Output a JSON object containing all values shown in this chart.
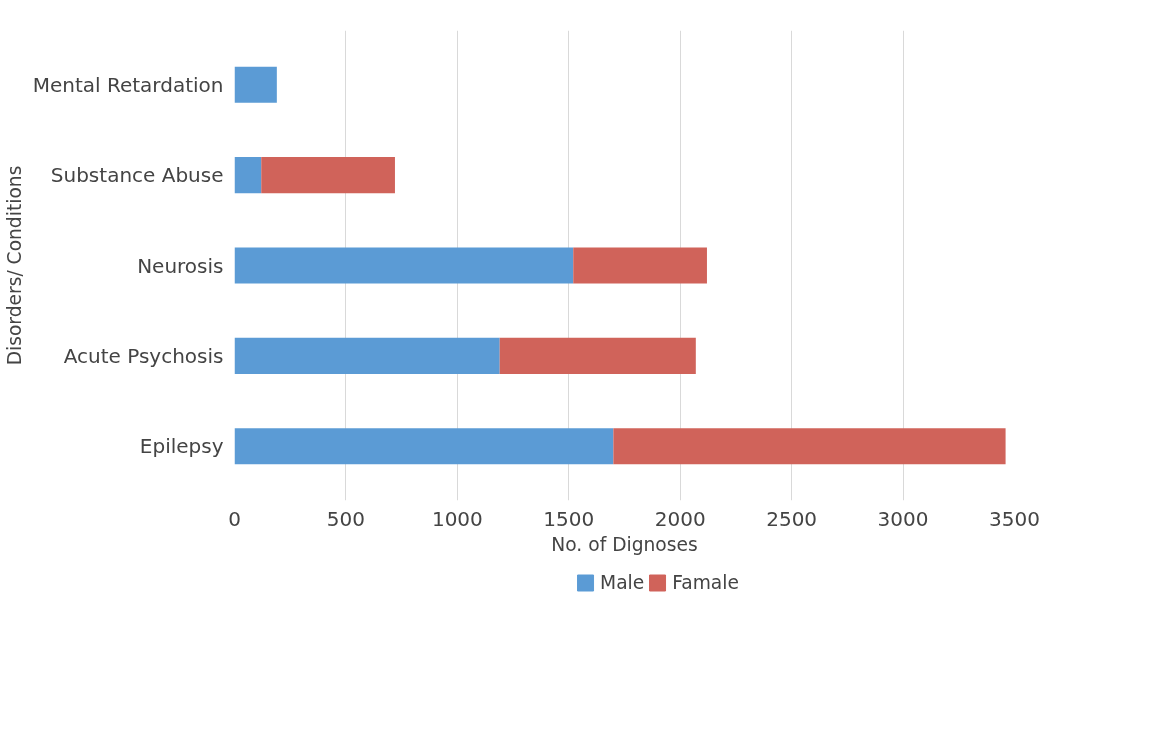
{
  "chart_data": {
    "type": "bar",
    "orientation": "horizontal",
    "stacked": true,
    "xlabel": "No. of Dignoses",
    "ylabel": "Disorders/ Conditions",
    "categories": [
      "Mental Retardation",
      "Substance Abuse",
      "Neurosis",
      "Acute Psychosis",
      "Epilepsy"
    ],
    "series": [
      {
        "name": "Male",
        "color": "#5b9bd5",
        "values": [
          190,
          120,
          1520,
          1190,
          1700
        ]
      },
      {
        "name": "Famale",
        "color": "#d0635a",
        "values": [
          0,
          600,
          600,
          880,
          1760
        ]
      }
    ],
    "xlim": [
      0,
      3500
    ],
    "xticks": [
      0,
      500,
      1000,
      1500,
      2000,
      2500,
      3000,
      3500
    ],
    "grid": "x",
    "legend": "bottom"
  }
}
